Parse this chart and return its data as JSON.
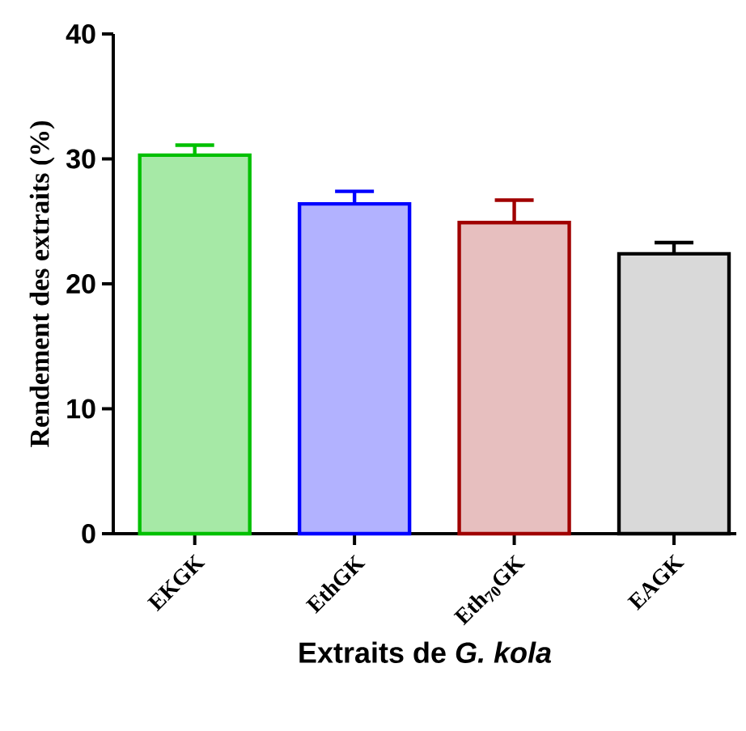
{
  "chart_data": {
    "type": "bar",
    "categories": [
      "EKGK",
      "EthGK",
      "Eth$_{70}$GK",
      "EAGK"
    ],
    "values": [
      30.3,
      26.4,
      24.9,
      22.4
    ],
    "errors": [
      [
        30.3,
        31.1
      ],
      [
        26.4,
        27.4
      ],
      [
        24.9,
        26.7
      ],
      [
        22.4,
        23.3
      ]
    ],
    "colors": [
      "#00c000",
      "#0000ff",
      "#a00000",
      "#000000"
    ],
    "xlabel": "Extraits de *G. kola*",
    "ylabel": "Rendement des extraits (%)",
    "ylim": [
      0,
      40
    ],
    "yticks": [
      0,
      10,
      20,
      30,
      40
    ]
  }
}
